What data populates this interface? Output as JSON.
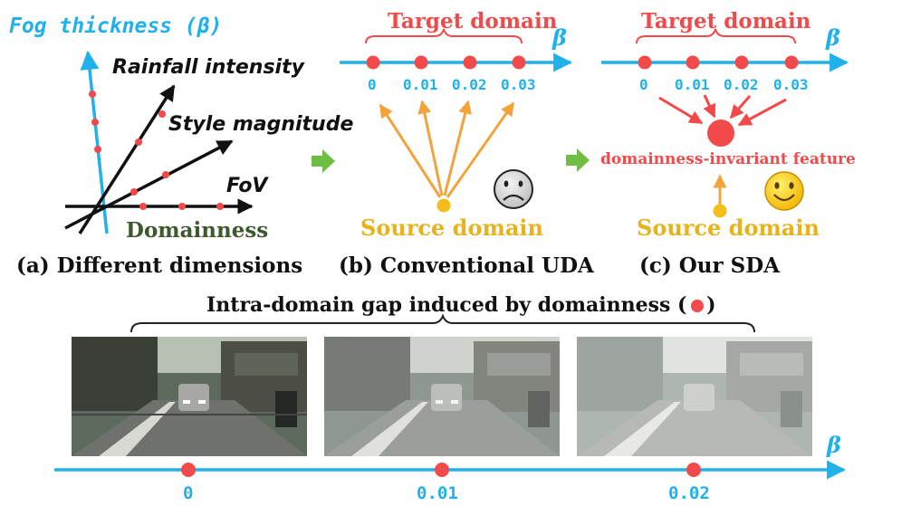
{
  "colors": {
    "blue": "#21b1ea",
    "red": "#f24a4a",
    "orange": "#f2a33c",
    "gold": "#f3bd1a",
    "dark_green": "#3d5a2e",
    "arrow_green": "#6fbe44",
    "black": "#111111"
  },
  "panel_a": {
    "fog_label": "Fog thickness (β)",
    "rain_label": "Rainfall intensity",
    "style_label": "Style magnitude",
    "fov_label": "FoV",
    "domainness_label": "Domainness",
    "caption": "(a) Different dimensions"
  },
  "panel_b": {
    "target_label": "Target domain",
    "beta_label": "β",
    "ticks": [
      "0",
      "0.01",
      "0.02",
      "0.03"
    ],
    "source_label": "Source domain",
    "face_icon": "sad-face-icon",
    "caption": "(b) Conventional UDA"
  },
  "panel_c": {
    "target_label": "Target domain",
    "beta_label": "β",
    "ticks": [
      "0",
      "0.01",
      "0.02",
      "0.03"
    ],
    "feature_label": "domainness-invariant feature",
    "source_label": "Source domain",
    "face_icon": "happy-face-icon",
    "caption": "(c) Our SDA"
  },
  "bottom": {
    "gap_label": "Intra-domain gap induced by domainness (",
    "gap_label_end": ")",
    "beta_label": "β",
    "ticks": [
      "0",
      "0.01",
      "0.02"
    ],
    "fog_levels": [
      0,
      0.01,
      0.02
    ]
  }
}
